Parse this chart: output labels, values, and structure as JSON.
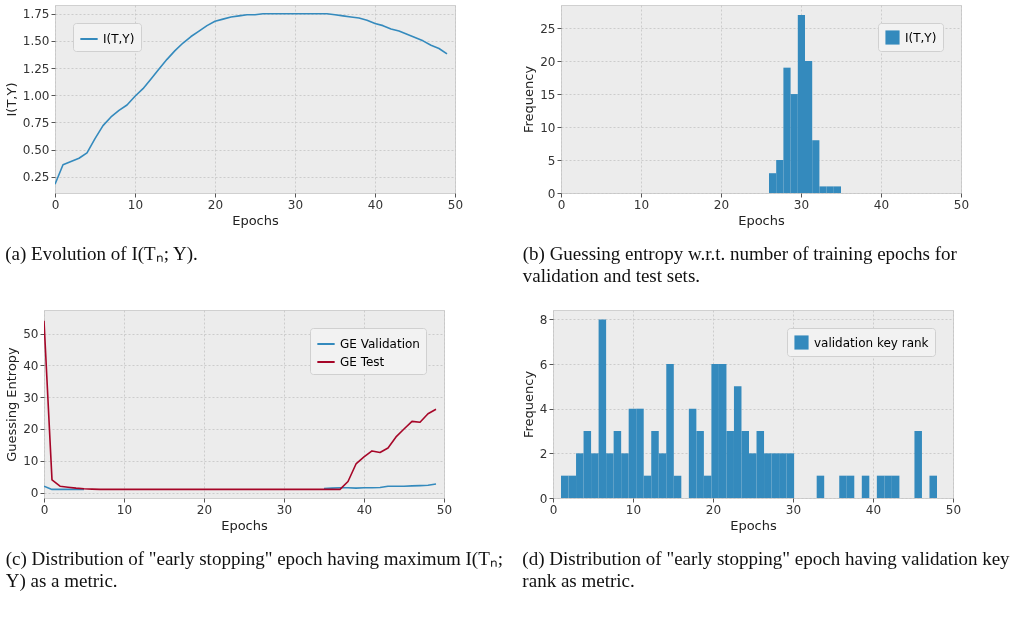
{
  "chart_data": [
    {
      "type": "line",
      "xlabel": "Epochs",
      "ylabel": "I(T,Y)",
      "annotations": [
        "(a) Evolution of I(Tₙ; Y)."
      ],
      "x": [
        0,
        1,
        2,
        3,
        4,
        5,
        6,
        7,
        8,
        9,
        10,
        11,
        12,
        13,
        14,
        15,
        16,
        17,
        18,
        19,
        20,
        21,
        22,
        23,
        24,
        25,
        26,
        27,
        28,
        29,
        30,
        31,
        32,
        33,
        34,
        35,
        36,
        37,
        38,
        39,
        40,
        41,
        42,
        43,
        44,
        45,
        46,
        47,
        48,
        49
      ],
      "series": [
        {
          "name": "I(T,Y)",
          "color": "#348abd",
          "values": [
            0.18,
            0.36,
            0.39,
            0.42,
            0.47,
            0.6,
            0.72,
            0.8,
            0.86,
            0.91,
            0.99,
            1.06,
            1.15,
            1.24,
            1.33,
            1.41,
            1.48,
            1.54,
            1.59,
            1.64,
            1.68,
            1.7,
            1.72,
            1.73,
            1.74,
            1.74,
            1.75,
            1.75,
            1.75,
            1.75,
            1.75,
            1.75,
            1.75,
            1.75,
            1.75,
            1.74,
            1.73,
            1.72,
            1.71,
            1.69,
            1.66,
            1.64,
            1.61,
            1.59,
            1.56,
            1.53,
            1.5,
            1.46,
            1.43,
            1.38
          ]
        }
      ],
      "xlim": [
        0,
        50
      ],
      "xticks": [
        0,
        10,
        20,
        30,
        40,
        50
      ],
      "ylim": [
        0.1,
        1.83
      ],
      "yticks": [
        0.25,
        {
          "value": 0.5,
          "label": "0.50"
        },
        0.75,
        {
          "value": 1,
          "label": "1.00"
        },
        1.25,
        {
          "value": 1.5,
          "label": "1.50"
        },
        1.75
      ],
      "grid": true,
      "legend": "top left"
    },
    {
      "type": "histogram",
      "xlabel": "Epochs",
      "ylabel": "Frequency",
      "annotations": [
        "(b) Guessing entropy w.r.t. number of training epochs for validation and test sets."
      ],
      "bins": [
        26,
        26.9,
        27.8,
        28.7,
        29.6,
        30.5,
        31.4,
        32.3,
        33.2,
        34.1,
        35
      ],
      "series": [
        {
          "name": "I(T,Y)",
          "color": "#348abd",
          "values": [
            3,
            5,
            19,
            15,
            27,
            20,
            8,
            1,
            1,
            1
          ]
        }
      ],
      "xlim": [
        0,
        50
      ],
      "xticks": [
        0,
        10,
        20,
        30,
        40,
        50
      ],
      "ylim": [
        0,
        28.5
      ],
      "yticks": [
        0,
        5,
        10,
        15,
        20,
        25
      ],
      "grid": true,
      "legend": "top right"
    },
    {
      "type": "line",
      "xlabel": "Epochs",
      "ylabel": "Guessing Entropy",
      "annotations": [
        "(c) Distribution of \"early stopping\" epoch having maximum I(Tₙ; Y) as a metric."
      ],
      "x": [
        0,
        1,
        2,
        3,
        4,
        5,
        6,
        7,
        8,
        9,
        10,
        11,
        12,
        13,
        14,
        15,
        16,
        17,
        18,
        19,
        20,
        21,
        22,
        23,
        24,
        25,
        26,
        27,
        28,
        29,
        30,
        31,
        32,
        33,
        34,
        35,
        36,
        37,
        38,
        39,
        40,
        41,
        42,
        43,
        44,
        45,
        46,
        47,
        48,
        49
      ],
      "series": [
        {
          "name": "GE Validation",
          "color": "#348abd",
          "values": [
            2,
            1,
            1,
            1,
            1,
            1,
            null,
            null,
            null,
            null,
            null,
            null,
            null,
            null,
            null,
            null,
            null,
            null,
            null,
            null,
            null,
            null,
            null,
            null,
            null,
            null,
            null,
            null,
            null,
            null,
            null,
            null,
            null,
            null,
            null,
            1.3,
            1.4,
            1.5,
            1.5,
            1.4,
            1.5,
            1.5,
            1.6,
            2,
            2,
            2,
            2.1,
            2.2,
            2.3,
            2.7
          ]
        },
        {
          "name": "GE Test",
          "color": "#a60628",
          "values": [
            54,
            4,
            2,
            1.7,
            1.4,
            1.2,
            1.1,
            1,
            1,
            1,
            1,
            1,
            1,
            1,
            1,
            1,
            1,
            1,
            1,
            1,
            1,
            1,
            1,
            1,
            1,
            1,
            1,
            1,
            1,
            1,
            1,
            1,
            1,
            1,
            1,
            1,
            1,
            1,
            3.5,
            9,
            11.2,
            13.1,
            12.6,
            14,
            17.5,
            20,
            22.4,
            22.1,
            24.8,
            26.2
          ]
        }
      ],
      "xlim": [
        0,
        50
      ],
      "xticks": [
        0,
        10,
        20,
        30,
        40,
        50
      ],
      "ylim": [
        -1.7,
        57.4
      ],
      "yticks": [
        0,
        10,
        20,
        30,
        40,
        50
      ],
      "grid": true,
      "legend": "top right"
    },
    {
      "type": "histogram",
      "xlabel": "Epochs",
      "ylabel": "Frequency",
      "annotations": [
        "(d) Distribution of \"early stopping\" epoch having validation key rank as metric."
      ],
      "bins": [
        1,
        1.94,
        2.88,
        3.82,
        4.76,
        5.7,
        6.64,
        7.58,
        8.52,
        9.46,
        10.4,
        11.34,
        12.28,
        13.22,
        14.16,
        15.1,
        16.04,
        16.98,
        17.92,
        18.86,
        19.8,
        20.74,
        21.68,
        22.62,
        23.56,
        24.5,
        25.44,
        26.38,
        27.32,
        28.26,
        29.2,
        30.14,
        31.08,
        32.02,
        32.96,
        33.9,
        34.84,
        35.78,
        36.72,
        37.66,
        38.6,
        39.54,
        40.48,
        41.42,
        42.36,
        43.3,
        44.24,
        45.18,
        46.12,
        47.06,
        48
      ],
      "series": [
        {
          "name": "validation key rank",
          "color": "#348abd",
          "values": [
            1,
            1,
            2,
            3,
            2,
            8,
            2,
            3,
            2,
            4,
            4,
            1,
            3,
            2,
            6,
            1,
            0,
            4,
            3,
            1,
            6,
            6,
            3,
            5,
            3,
            2,
            3,
            2,
            2,
            2,
            2,
            0,
            0,
            0,
            1,
            0,
            0,
            1,
            1,
            0,
            1,
            0,
            1,
            1,
            1,
            0,
            0,
            3,
            0,
            1
          ]
        }
      ],
      "xlim": [
        0,
        50
      ],
      "xticks": [
        0,
        10,
        20,
        30,
        40,
        50
      ],
      "ylim": [
        0,
        8.42
      ],
      "yticks": [
        0,
        2,
        4,
        6,
        8
      ],
      "grid": true,
      "legend": "top right"
    }
  ]
}
